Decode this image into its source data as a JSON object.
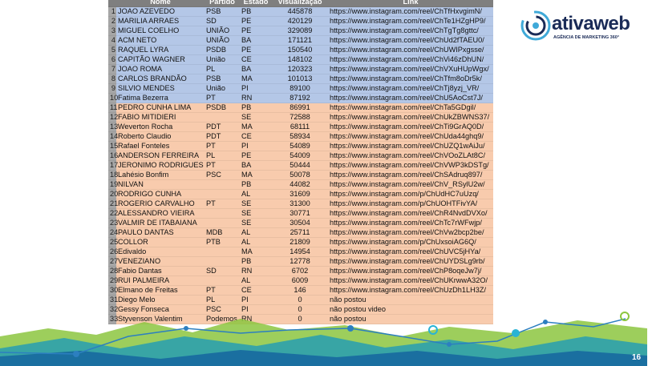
{
  "logo": {
    "name": "ativaweb",
    "tagline": "AGÊNCIA DE MARKETING 360°"
  },
  "page_number": "16",
  "table": {
    "headers": [
      "Nome",
      "Partido",
      "Estado",
      "Visualização",
      "Link"
    ],
    "rows": [
      {
        "n": "1",
        "nome": "JOAO AZEVEDO",
        "partido": "PSB",
        "estado": "PB",
        "visualizacao": 445878,
        "link": "https://www.instagram.com/reel/ChTfHxvgimN/"
      },
      {
        "n": "2",
        "nome": "MARILIA ARRAES",
        "partido": "SD",
        "estado": "PE",
        "visualizacao": 420129,
        "link": "https://www.instagram.com/reel/ChTe1HZgHP9/"
      },
      {
        "n": "3",
        "nome": "MIGUEL COELHO",
        "partido": "UNIÃO",
        "estado": "PE",
        "visualizacao": 329089,
        "link": "https://www.instagram.com/reel/ChTgTg8gttc/"
      },
      {
        "n": "4",
        "nome": "ACM NETO",
        "partido": "UNIÃO",
        "estado": "BA",
        "visualizacao": 171121,
        "link": "https://www.instagram.com/reel/ChUd2fTAEU0/"
      },
      {
        "n": "5",
        "nome": "RAQUEL LYRA",
        "partido": "PSDB",
        "estado": "PE",
        "visualizacao": 150540,
        "link": "https://www.instagram.com/reel/ChUWIPxgsse/"
      },
      {
        "n": "6",
        "nome": "CAPITÃO WAGNER",
        "partido": "União",
        "estado": "CE",
        "visualizacao": 148102,
        "link": "https://www.instagram.com/reel/ChVi46zDhUN/"
      },
      {
        "n": "7",
        "nome": "JOAO ROMA",
        "partido": "PL",
        "estado": "BA",
        "visualizacao": 120323,
        "link": "https://www.instagram.com/reel/ChVXuHUpWgx/"
      },
      {
        "n": "8",
        "nome": "CARLOS BRANDÃO",
        "partido": "PSB",
        "estado": "MA",
        "visualizacao": 101013,
        "link": "https://www.instagram.com/reel/ChTfm8oDr5k/"
      },
      {
        "n": "9",
        "nome": "SILVIO MENDES",
        "partido": "União",
        "estado": "PI",
        "visualizacao": 89100,
        "link": "https://www.instagram.com/reel/ChTj8yzj_VR/"
      },
      {
        "n": "10",
        "nome": "Fatima Bezerra",
        "partido": "PT",
        "estado": "RN",
        "visualizacao": 87192,
        "link": "https://www.instagram.com/reel/ChU5AoCst7J/"
      },
      {
        "n": "11",
        "nome": "PEDRO CUNHA LIMA",
        "partido": "PSDB",
        "estado": "PB",
        "visualizacao": 86991,
        "link": "https://www.instagram.com/reel/ChTa5GDgil/"
      },
      {
        "n": "12",
        "nome": "FABIO MITIDIERI",
        "estado": "SE",
        "visualizacao": 72588,
        "link": "https://www.instagram.com/reel/ChUkZBWNS37/"
      },
      {
        "n": "13",
        "nome": "Weverton Rocha",
        "partido": "PDT",
        "estado": "MA",
        "visualizacao": 68111,
        "link": "https://www.instagram.com/reel/ChTi9GrAQ0D/"
      },
      {
        "n": "14",
        "nome": "Roberto Claudio",
        "partido": "PDT",
        "estado": "CE",
        "visualizacao": 58934,
        "link": "https://www.instagram.com/reel/ChUda44ghq9/"
      },
      {
        "n": "15",
        "nome": "Rafael Fonteles",
        "partido": "PT",
        "estado": "PI",
        "visualizacao": 54089,
        "link": "https://www.instagram.com/reel/ChUZQ1wAiJu/"
      },
      {
        "n": "16",
        "nome": "ANDERSON FERREIRA",
        "partido": "PL",
        "estado": "PE",
        "visualizacao": 54009,
        "link": "https://www.instagram.com/reel/ChVOoZLAt8C/"
      },
      {
        "n": "17",
        "nome": "JERONIMO RODRIGUES",
        "partido": "PT",
        "estado": "BA",
        "visualizacao": 50444,
        "link": "https://www.instagram.com/reel/ChVWP3kDSTg/"
      },
      {
        "n": "18",
        "nome": "Lahésio Bonfim",
        "partido": "PSC",
        "estado": "MA",
        "visualizacao": 50078,
        "link": "https://www.instagram.com/reel/ChSAdruq897/"
      },
      {
        "n": "19",
        "nome": "NILVAN",
        "estado": "PB",
        "visualizacao": 44082,
        "link": "https://www.instagram.com/reel/ChV_RSylU2w/"
      },
      {
        "n": "20",
        "nome": "RODRIGO CUNHA",
        "estado": "AL",
        "visualizacao": 31609,
        "link": "https://www.instagram.com/p/ChUdHC7uUzq/"
      },
      {
        "n": "21",
        "nome": "ROGERIO CARVALHO",
        "partido": "PT",
        "estado": "SE",
        "visualizacao": 31300,
        "link": "https://www.instagram.com/p/ChUOHTFivYA/"
      },
      {
        "n": "22",
        "nome": "ALESSANDRO VIEIRA",
        "estado": "SE",
        "visualizacao": 30771,
        "link": "https://www.instagram.com/reel/ChR4NvdDVXo/"
      },
      {
        "n": "23",
        "nome": "VALMIR DE ITABAIANA",
        "estado": "SE",
        "visualizacao": 30504,
        "link": "https://www.instagram.com/reel/ChTc7rWFwjp/"
      },
      {
        "n": "24",
        "nome": "PAULO DANTAS",
        "partido": "MDB",
        "estado": "AL",
        "visualizacao": 25711,
        "link": "https://www.instagram.com/reel/ChVw2bcp2be/"
      },
      {
        "n": "25",
        "nome": "COLLOR",
        "partido": "PTB",
        "estado": "AL",
        "visualizacao": 21809,
        "link": "https://www.instagram.com/p/ChUxsoiAG6Q/"
      },
      {
        "n": "26",
        "nome": "Edivaldo",
        "estado": "MA",
        "visualizacao": 14954,
        "link": "https://www.instagram.com/reel/ChUVC5jHYa/"
      },
      {
        "n": "27",
        "nome": "VENEZIANO",
        "estado": "PB",
        "visualizacao": 12778,
        "link": "https://www.instagram.com/reel/ChUYDSLg9rb/"
      },
      {
        "n": "28",
        "nome": "Fabio Dantas",
        "partido": "SD",
        "estado": "RN",
        "visualizacao": 6702,
        "link": "https://www.instagram.com/reel/ChP8oqeJw7j/"
      },
      {
        "n": "29",
        "nome": "RUI PALMEIRA",
        "estado": "AL",
        "visualizacao": 6009,
        "link": "https://www.instagram.com/reel/ChUKrwwA32O/"
      },
      {
        "n": "30",
        "nome": "Elmano de Freitas",
        "partido": "PT",
        "estado": "CE",
        "visualizacao": 146,
        "link": "https://www.instagram.com/reel/ChUzDh1LH3Z/"
      },
      {
        "n": "31",
        "nome": "Diego Melo",
        "partido": "PL",
        "estado": "PI",
        "visualizacao": 0,
        "link": "não postou"
      },
      {
        "n": "32",
        "nome": "Gessy Fonseca",
        "partido": "PSC",
        "estado": "PI",
        "visualizacao": 0,
        "link": "não postou video"
      },
      {
        "n": "33",
        "nome": "Styvenson Valentim",
        "partido": "Podemos",
        "estado": "RN",
        "visualizacao": 0,
        "link": "não postou"
      }
    ]
  }
}
